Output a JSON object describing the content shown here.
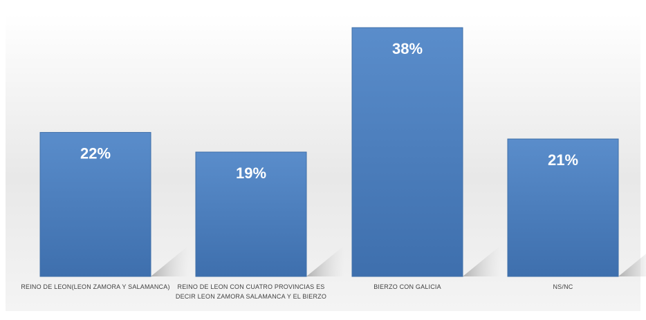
{
  "chart_data": {
    "type": "bar",
    "title": "",
    "xlabel": "",
    "ylabel": "",
    "categories": [
      "REINO DE LEON(LEON ZAMORA Y SALAMANCA)",
      "REINO DE LEON CON CUATRO PROVINCIAS ES DECIR LEON ZAMORA SALAMANCA Y EL BIERZO",
      "BIERZO CON GALICIA",
      "NS/NC"
    ],
    "values": [
      22,
      19,
      38,
      21
    ],
    "value_labels": [
      "22%",
      "19%",
      "38%",
      "21%"
    ],
    "ylim": [
      0,
      40
    ],
    "grid": false,
    "legend": "none",
    "colors": {
      "bar": "#4f81bd",
      "bar_edge": "#3f6fa8",
      "label_text": "#ffffff",
      "axis_text": "#404040",
      "background_band": "#e9e9e9"
    }
  }
}
